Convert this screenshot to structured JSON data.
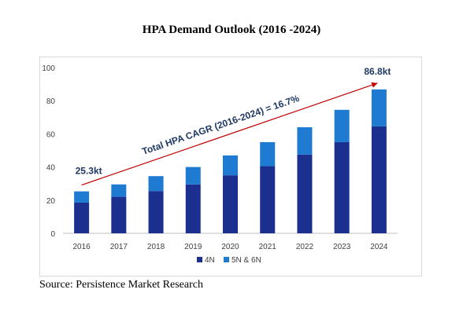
{
  "chart_data": {
    "type": "bar",
    "title": "HPA Demand Outlook (2016 -2024)",
    "categories": [
      "2016",
      "2017",
      "2018",
      "2019",
      "2020",
      "2021",
      "2022",
      "2023",
      "2024"
    ],
    "series": [
      {
        "name": "4N",
        "color": "#1b2f8f",
        "values": [
          18.5,
          22,
          25.5,
          29.5,
          35,
          40.5,
          47.5,
          55,
          64.5
        ]
      },
      {
        "name": "5N & 6N",
        "color": "#1f7ad1",
        "values": [
          6.8,
          7.5,
          9,
          10.5,
          12,
          14.5,
          16.5,
          19.5,
          22.3
        ]
      }
    ],
    "ylim": [
      0,
      100
    ],
    "yticks": [
      "0",
      "20",
      "40",
      "60",
      "80",
      "100"
    ],
    "grid": false,
    "legend_position": "bottom",
    "annotations": {
      "start_label": "25.3kt",
      "end_label": "86.8kt",
      "cagr_label": "Total HPA CAGR (2016-2024) = 16.7%"
    },
    "arrow_color": "#c00000"
  },
  "source": "Source: Persistence Market Research"
}
